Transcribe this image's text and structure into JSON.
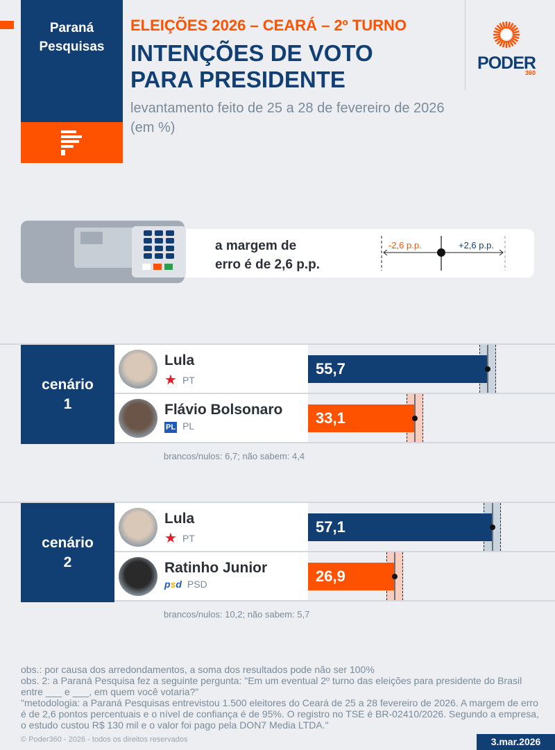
{
  "header": {
    "brand_line1": "Paraná",
    "brand_line2": "Pesquisas",
    "kicker": "ELEIÇÕES 2026 – CEARÁ – 2º TURNO",
    "title_line1": "INTENÇÕES DE VOTO",
    "title_line2": "PARA PRESIDENTE",
    "subtitle": "levantamento feito de 25 a 28 de fevereiro de 2026 (em %)",
    "publisher": "PODER",
    "publisher_num": "360"
  },
  "margin": {
    "line1": "a margem de",
    "line2": "erro é de 2,6 p.p.",
    "minus": "-2,6 p.p.",
    "plus": "+2,6 p.p.",
    "value": 2.6
  },
  "colors": {
    "navy": "#123f73",
    "orange": "#ff5200"
  },
  "scenarios": [
    {
      "label1": "cenário",
      "label2": "1",
      "candidates": [
        {
          "name": "Lula",
          "party": "PT",
          "value": 55.7,
          "value_label": "55,7",
          "color": "#123f73"
        },
        {
          "name": "Flávio Bolsonaro",
          "party": "PL",
          "value": 33.1,
          "value_label": "33,1",
          "color": "#ff5200"
        }
      ],
      "note": "brancos/nulos: 6,7; não sabem: 4,4"
    },
    {
      "label1": "cenário",
      "label2": "2",
      "candidates": [
        {
          "name": "Lula",
          "party": "PT",
          "value": 57.1,
          "value_label": "57,1",
          "color": "#123f73"
        },
        {
          "name": "Ratinho Junior",
          "party": "PSD",
          "value": 26.9,
          "value_label": "26,9",
          "color": "#ff5200"
        }
      ],
      "note": "brancos/nulos: 10,2; não sabem: 5,7"
    }
  ],
  "notes": [
    "obs.: por causa dos arredondamentos, a soma dos resultados pode não ser 100%",
    "obs. 2: a Paraná Pesquisa fez a seguinte pergunta: \"Em um eventual 2º turno das eleições para presidente do Brasil entre ___ e ___, em quem você votaria?\"",
    "\"metodologia: a Paraná Pesquisas entrevistou 1.500 eleitores do Ceará de 25 a 28 fevereiro de 2026. A margem de erro é de 2,6 pontos percentuais e o nível de confiança é de 95%. O registro no TSE é BR-02410/2026. Segundo a empresa, o estudo custou R$ 130 mil e o valor foi pago pela DON7 Media LTDA.\""
  ],
  "footer": {
    "copyright": "© Poder360 - 2026 - todos os direitos reservados",
    "date": "3.mar.2026"
  }
}
